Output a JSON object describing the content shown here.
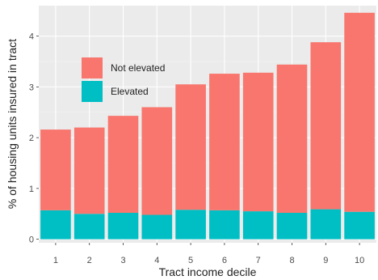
{
  "chart_data": {
    "type": "bar",
    "stacked": true,
    "title": "",
    "xlabel": "Tract income decile",
    "ylabel": "% of housing units insured in tract",
    "categories": [
      "1",
      "2",
      "3",
      "4",
      "5",
      "6",
      "7",
      "8",
      "9",
      "10"
    ],
    "series": [
      {
        "name": "Elevated",
        "color": "#00BFC4",
        "values": [
          0.57,
          0.5,
          0.52,
          0.48,
          0.58,
          0.57,
          0.55,
          0.52,
          0.59,
          0.54
        ]
      },
      {
        "name": "Not elevated",
        "color": "#F8766D",
        "values": [
          1.59,
          1.7,
          1.91,
          2.12,
          2.47,
          2.69,
          2.73,
          2.92,
          3.29,
          3.92
        ]
      }
    ],
    "totals": [
      2.16,
      2.2,
      2.43,
      2.6,
      3.05,
      3.26,
      3.28,
      3.44,
      3.88,
      4.46
    ],
    "yticks": [
      "0",
      "1",
      "2",
      "3",
      "4"
    ],
    "ylim": [
      -0.07,
      4.6
    ],
    "grid": true,
    "panel_background": "#EBEBEB",
    "legend_position": "inside-top-left",
    "legend_order": [
      "Not elevated",
      "Elevated"
    ]
  }
}
